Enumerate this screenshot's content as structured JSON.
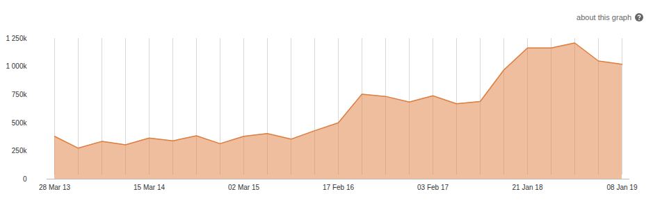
{
  "chart_data": {
    "type": "area",
    "annotations": [
      "about this graph"
    ],
    "categories": [
      "28 Mar 13",
      null,
      null,
      null,
      "15 Mar 14",
      null,
      null,
      null,
      "02 Mar 15",
      null,
      null,
      null,
      "17 Feb 16",
      null,
      null,
      null,
      "03 Feb 17",
      null,
      null,
      null,
      "21 Jan 18",
      null,
      null,
      null,
      "08 Jan 19"
    ],
    "values": [
      380000,
      275000,
      335000,
      305000,
      365000,
      340000,
      385000,
      315000,
      380000,
      405000,
      355000,
      430000,
      500000,
      755000,
      735000,
      685000,
      740000,
      670000,
      690000,
      970000,
      1165000,
      1165000,
      1210000,
      1050000,
      1020000
    ],
    "color": "#de7d3e",
    "ylim": [
      0,
      1250000
    ],
    "yticks": [
      0,
      {
        "value": 250000,
        "label": "250k"
      },
      {
        "value": 500000,
        "label": "500k"
      },
      {
        "value": 750000,
        "label": "750k"
      },
      {
        "value": 1000000,
        "label": "1 000k"
      },
      {
        "value": 1250000,
        "label": "1 250k"
      }
    ],
    "grid": "x"
  }
}
